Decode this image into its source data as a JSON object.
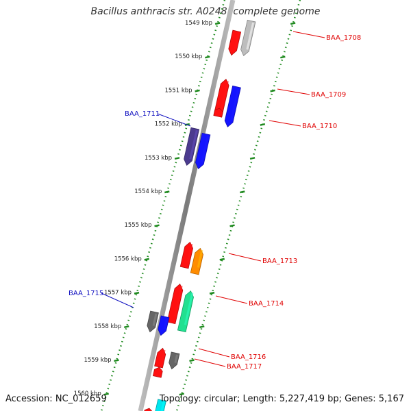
{
  "title": "Bacillus anthracis str. A0248, complete genome",
  "footer": {
    "accession": "Accession: NC_012659",
    "summary": "Topology: circular; Length: 5,227,419 bp; Genes: 5,167"
  },
  "colors": {
    "backbone": "#8a8a8a",
    "tick_green": "#1f8a1f",
    "label_red": "#e00000",
    "label_blue": "#1010c0"
  },
  "kbp_labels": [
    {
      "text": "1549 kbp",
      "kbp": 1549
    },
    {
      "text": "1550 kbp",
      "kbp": 1550
    },
    {
      "text": "1551 kbp",
      "kbp": 1551
    },
    {
      "text": "1552 kbp",
      "kbp": 1552
    },
    {
      "text": "1553 kbp",
      "kbp": 1553
    },
    {
      "text": "1554 kbp",
      "kbp": 1554
    },
    {
      "text": "1555 kbp",
      "kbp": 1555
    },
    {
      "text": "1556 kbp",
      "kbp": 1556
    },
    {
      "text": "1557 kbp",
      "kbp": 1557
    },
    {
      "text": "1558 kbp",
      "kbp": 1558
    },
    {
      "text": "1559 kbp",
      "kbp": 1559
    },
    {
      "text": "1560 kbp",
      "kbp": 1560
    }
  ],
  "gene_labels": [
    {
      "name": "BAA_1708",
      "side": "right",
      "color": "#e00000"
    },
    {
      "name": "BAA_1709",
      "side": "right",
      "color": "#e00000"
    },
    {
      "name": "BAA_1710",
      "side": "right",
      "color": "#e00000"
    },
    {
      "name": "BAA_1711",
      "side": "left",
      "color": "#1010c0"
    },
    {
      "name": "BAA_1713",
      "side": "right",
      "color": "#e00000"
    },
    {
      "name": "BAA_1714",
      "side": "right",
      "color": "#e00000"
    },
    {
      "name": "BAA_1715",
      "side": "left",
      "color": "#1010c0"
    },
    {
      "name": "BAA_1716",
      "side": "right",
      "color": "#e00000"
    },
    {
      "name": "BAA_1717",
      "side": "right",
      "color": "#e00000"
    }
  ],
  "genes": [
    {
      "color": "#ff1010",
      "strand": "+",
      "track": "inner"
    },
    {
      "color": "#bdbdbd",
      "strand": "+",
      "track": "outer"
    },
    {
      "color": "#ff1010",
      "strand": "-",
      "track": "inner"
    },
    {
      "color": "#1414ff",
      "strand": "+",
      "track": "outer"
    },
    {
      "color": "#ff1010",
      "strand": "-",
      "track": "inner"
    },
    {
      "color": "#4b3a8f",
      "strand": "+",
      "track": "inner"
    },
    {
      "color": "#1414ff",
      "strand": "+",
      "track": "outer"
    },
    {
      "color": "#ff1010",
      "strand": "-",
      "track": "inner"
    },
    {
      "color": "#ff8c00",
      "strand": "-",
      "track": "outer"
    },
    {
      "color": "#ff1010",
      "strand": "-",
      "track": "inner"
    },
    {
      "color": "#22e090",
      "strand": "-",
      "track": "outer"
    },
    {
      "color": "#666666",
      "strand": "+",
      "track": "inner"
    },
    {
      "color": "#1414ff",
      "strand": "+",
      "track": "outer"
    },
    {
      "color": "#ff1010",
      "strand": "-",
      "track": "inner"
    },
    {
      "color": "#666666",
      "strand": "+",
      "track": "outer"
    },
    {
      "color": "#ff1010",
      "strand": "-",
      "track": "inner"
    },
    {
      "color": "#ff1010",
      "strand": "-",
      "track": "inner"
    },
    {
      "color": "#00e5ee",
      "strand": "+",
      "track": "outer"
    }
  ]
}
